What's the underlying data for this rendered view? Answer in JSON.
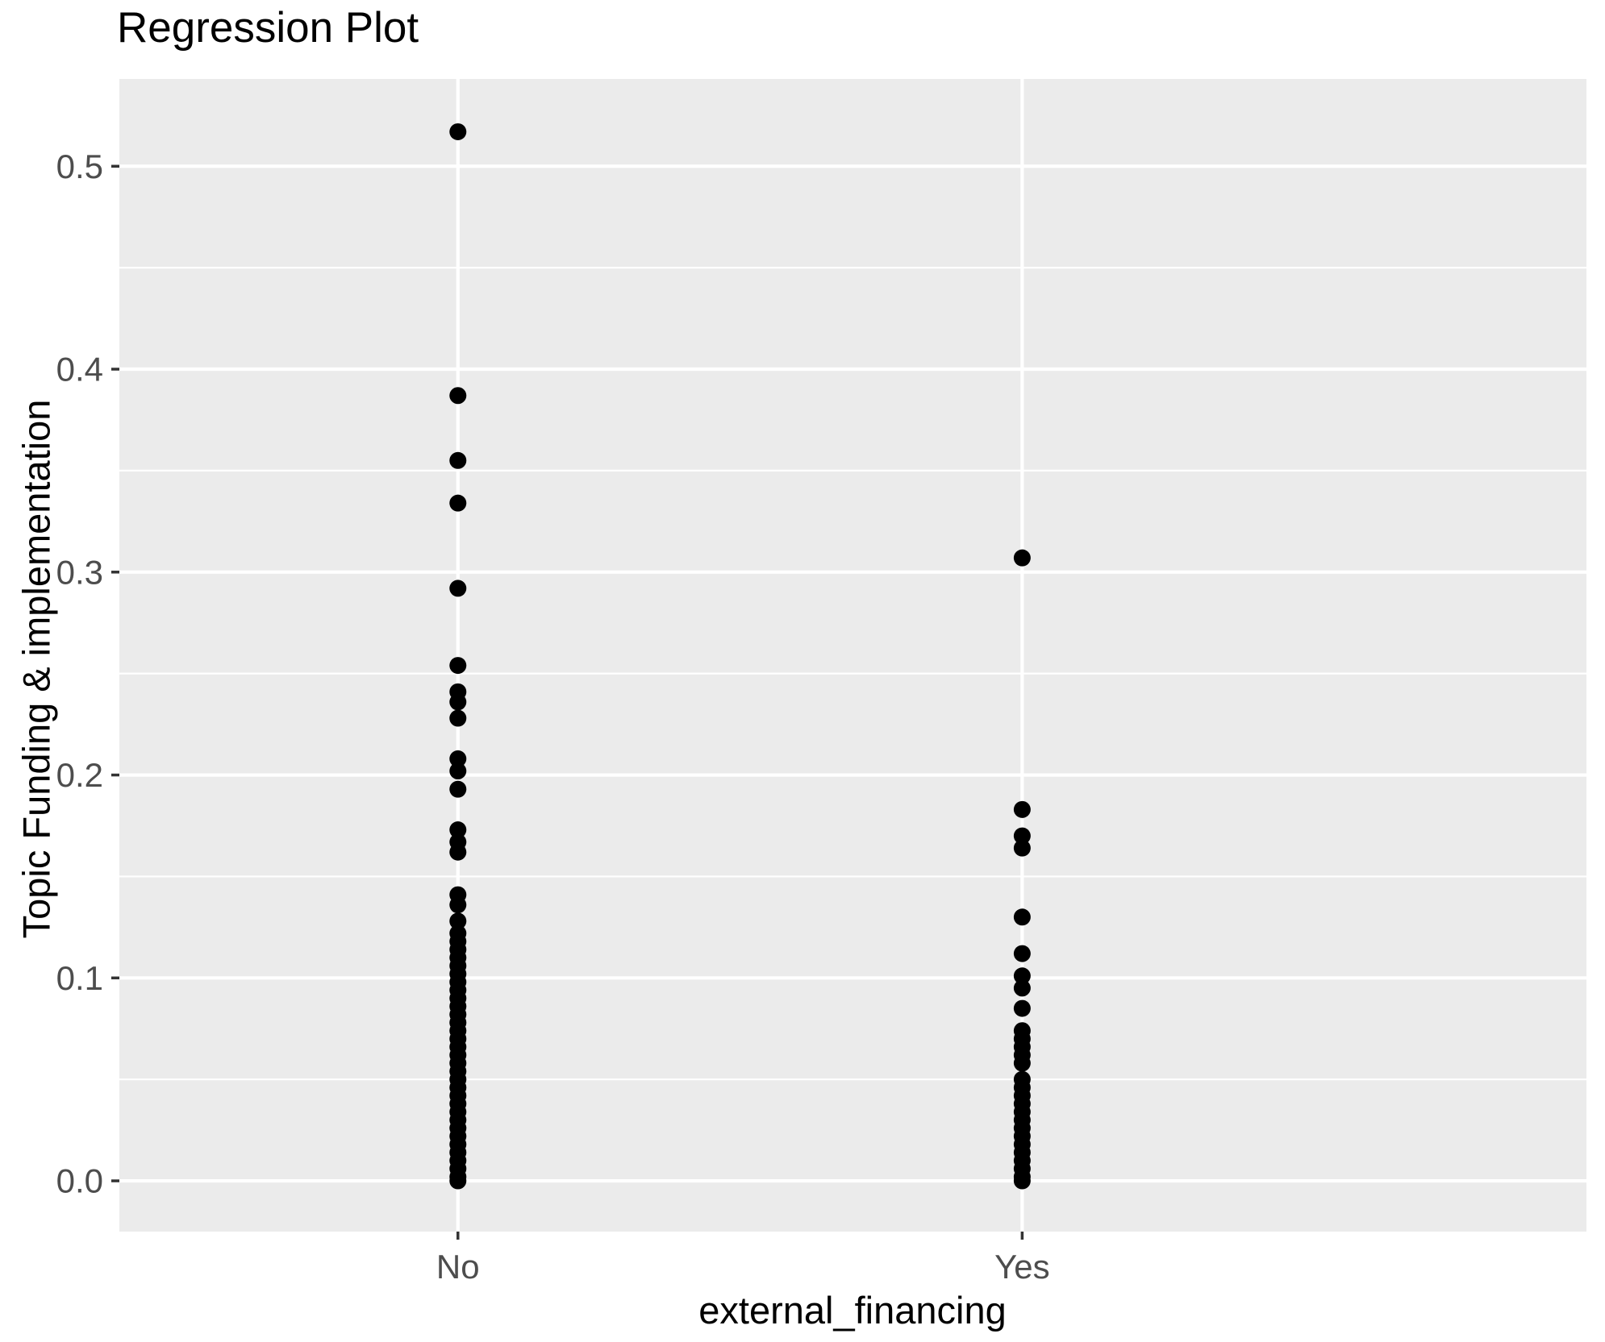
{
  "chart_data": {
    "type": "scatter",
    "title": "Regression Plot",
    "xlabel": "external_financing",
    "ylabel": "Topic Funding & implementation",
    "categories": [
      "No",
      "Yes"
    ],
    "yticks": [
      0.0,
      0.1,
      0.2,
      0.3,
      0.4,
      0.5
    ],
    "ytick_labels": [
      "0.0",
      "0.1",
      "0.2",
      "0.3",
      "0.4",
      "0.5"
    ],
    "minor_yticks": [
      0.05,
      0.15,
      0.25,
      0.35,
      0.45
    ],
    "ylim": [
      -0.025,
      0.543
    ],
    "grid": true,
    "legend_position": "none",
    "panel_bg": "#EBEBEB",
    "grid_color": "#FFFFFF",
    "point_color": "#000000",
    "tick_label_color": "#4D4D4D",
    "tick_mark_color": "#333333",
    "series": [
      {
        "name": "No",
        "values": [
          0.517,
          0.387,
          0.355,
          0.334,
          0.292,
          0.254,
          0.241,
          0.236,
          0.228,
          0.208,
          0.202,
          0.193,
          0.173,
          0.167,
          0.162,
          0.141,
          0.136,
          0.128,
          0.122,
          0.118,
          0.114,
          0.11,
          0.106,
          0.102,
          0.098,
          0.094,
          0.09,
          0.086,
          0.082,
          0.078,
          0.074,
          0.07,
          0.066,
          0.062,
          0.058,
          0.054,
          0.05,
          0.046,
          0.042,
          0.038,
          0.034,
          0.03,
          0.026,
          0.022,
          0.018,
          0.014,
          0.01,
          0.006,
          0.002,
          0.0
        ]
      },
      {
        "name": "Yes",
        "values": [
          0.307,
          0.183,
          0.17,
          0.164,
          0.13,
          0.112,
          0.101,
          0.095,
          0.085,
          0.074,
          0.07,
          0.066,
          0.062,
          0.058,
          0.05,
          0.046,
          0.042,
          0.038,
          0.034,
          0.03,
          0.026,
          0.022,
          0.018,
          0.014,
          0.01,
          0.006,
          0.002,
          0.0
        ]
      }
    ]
  }
}
